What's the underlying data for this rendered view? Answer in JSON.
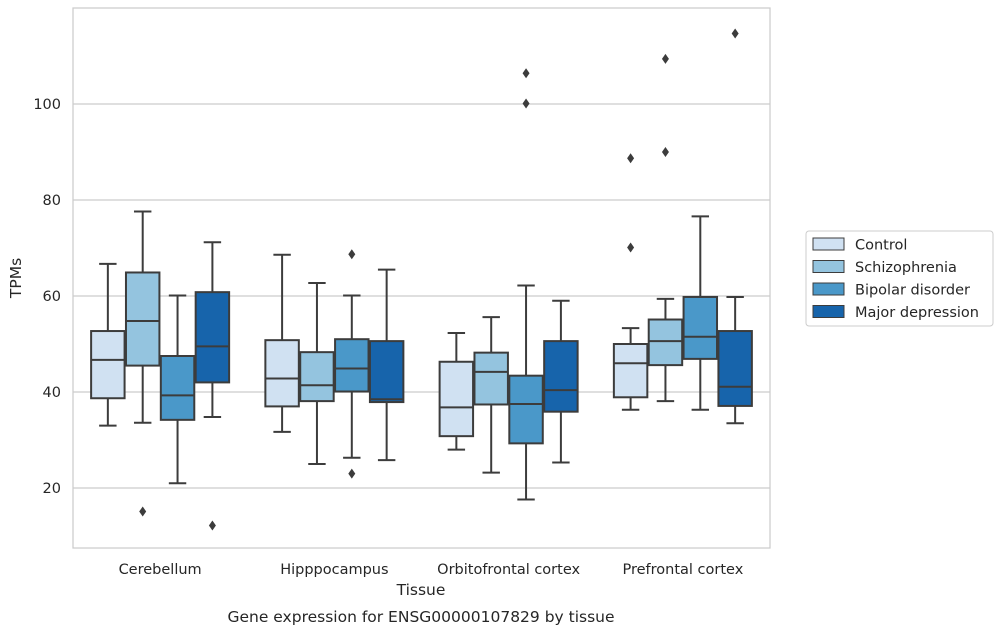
{
  "chart_data": {
    "type": "box",
    "xlabel": "Tissue",
    "ylabel": "TPMs",
    "caption": "Gene expression for ENSG00000107829 by tissue",
    "categories": [
      "Cerebellum",
      "Hipppocampus",
      "Orbitofrontal cortex",
      "Prefrontal cortex"
    ],
    "ylim": [
      7.5,
      120
    ],
    "yticks": [
      20,
      40,
      60,
      80,
      100
    ],
    "grid": true,
    "legend_position": "right",
    "series": [
      {
        "name": "Control",
        "color": "#d0e1f2",
        "boxes": [
          {
            "min": 33,
            "q1": 38.7,
            "median": 46.7,
            "q3": 52.7,
            "max": 66.7,
            "outliers": []
          },
          {
            "min": 31.7,
            "q1": 37,
            "median": 42.8,
            "q3": 50.8,
            "max": 68.6,
            "outliers": []
          },
          {
            "min": 28,
            "q1": 30.8,
            "median": 36.8,
            "q3": 46.3,
            "max": 52.3,
            "outliers": []
          },
          {
            "min": 36.3,
            "q1": 38.9,
            "median": 46,
            "q3": 50,
            "max": 53.3,
            "outliers": [
              70.1,
              88.7
            ]
          }
        ]
      },
      {
        "name": "Schizophrenia",
        "color": "#94c4df",
        "boxes": [
          {
            "min": 33.6,
            "q1": 45.5,
            "median": 54.8,
            "q3": 64.9,
            "max": 77.6,
            "outliers": [
              15.1
            ]
          },
          {
            "min": 25,
            "q1": 38.1,
            "median": 41.4,
            "q3": 48.3,
            "max": 62.7,
            "outliers": []
          },
          {
            "min": 23.2,
            "q1": 37.4,
            "median": 44.2,
            "q3": 48.2,
            "max": 55.6,
            "outliers": []
          },
          {
            "min": 38.1,
            "q1": 45.6,
            "median": 50.6,
            "q3": 55.1,
            "max": 59.4,
            "outliers": [
              90,
              109.4
            ]
          }
        ]
      },
      {
        "name": "Bipolar disorder",
        "color": "#4a98c9",
        "boxes": [
          {
            "min": 21,
            "q1": 34.2,
            "median": 39.3,
            "q3": 47.5,
            "max": 60.1,
            "outliers": []
          },
          {
            "min": 26.3,
            "q1": 40.1,
            "median": 44.9,
            "q3": 51,
            "max": 60.1,
            "outliers": [
              23,
              68.7
            ]
          },
          {
            "min": 17.6,
            "q1": 29.3,
            "median": 37.5,
            "q3": 43.4,
            "max": 62.2,
            "outliers": [
              100.1,
              106.4
            ]
          },
          {
            "min": 36.3,
            "q1": 46.9,
            "median": 51.5,
            "q3": 59.8,
            "max": 76.6,
            "outliers": []
          }
        ]
      },
      {
        "name": "Major depression",
        "color": "#1764ab",
        "boxes": [
          {
            "min": 34.8,
            "q1": 42,
            "median": 49.5,
            "q3": 60.8,
            "max": 71.2,
            "outliers": [
              12.2
            ]
          },
          {
            "min": 25.8,
            "q1": 37.9,
            "median": 38.5,
            "q3": 50.6,
            "max": 65.5,
            "outliers": []
          },
          {
            "min": 25.3,
            "q1": 35.9,
            "median": 40.4,
            "q3": 50.6,
            "max": 59,
            "outliers": []
          },
          {
            "min": 33.5,
            "q1": 37.1,
            "median": 41.1,
            "q3": 52.7,
            "max": 59.8,
            "outliers": [
              114.7
            ]
          }
        ]
      }
    ]
  }
}
